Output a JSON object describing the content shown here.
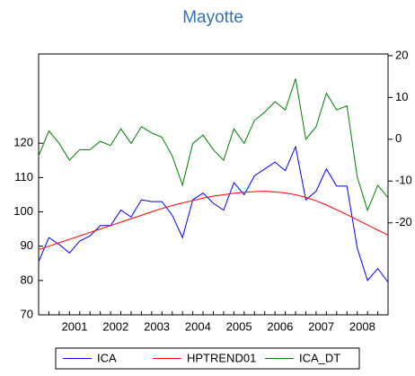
{
  "chart_data": {
    "type": "line",
    "title": "Mayotte",
    "categories": [
      null,
      null,
      "2001",
      null,
      null,
      null,
      "2002",
      null,
      null,
      null,
      "2003",
      null,
      null,
      null,
      "2004",
      null,
      null,
      null,
      "2005",
      null,
      null,
      null,
      "2006",
      null,
      null,
      null,
      "2007",
      null,
      null,
      null,
      "2008",
      null,
      null,
      null,
      null
    ],
    "series": [
      {
        "name": "ICA",
        "color": "#0000ff",
        "values": [
          85.5,
          92.5,
          90.5,
          88,
          91.5,
          93,
          96,
          96,
          100.5,
          98.5,
          103.5,
          103,
          103,
          99,
          92.5,
          103.5,
          105.5,
          102.5,
          100.5,
          108.5,
          105,
          110.5,
          112.5,
          114.5,
          112,
          119,
          103.5,
          106,
          112.5,
          107.5,
          107.5,
          89.5,
          80,
          83.5,
          79.5
        ]
      },
      {
        "name": "HPTREND01",
        "color": "#ff0000",
        "values": [
          89,
          90,
          91,
          92,
          93,
          94,
          95,
          96,
          97,
          98,
          99,
          100,
          101,
          101.8,
          102.6,
          103.3,
          104,
          104.6,
          105,
          105.4,
          105.7,
          105.9,
          106,
          105.8,
          105.5,
          105,
          104.2,
          103.2,
          102,
          100.6,
          99.2,
          97.7,
          96.2,
          94.7,
          93.2
        ]
      },
      {
        "name": "ICA_DT",
        "color": "#008000",
        "axis": "y2",
        "values": [
          -4,
          2,
          -1,
          -5,
          -2.5,
          -2.5,
          -0.5,
          -1.5,
          2.5,
          -1,
          3,
          1.5,
          0.5,
          -4,
          -11,
          -1,
          1,
          -2.5,
          -5,
          2.5,
          -1,
          4.5,
          6.5,
          9,
          7,
          14.5,
          0,
          3,
          11,
          7,
          8,
          -9,
          -17,
          -11,
          -14
        ]
      }
    ],
    "ylim": [
      70,
      146
    ],
    "yticks": [
      70,
      80,
      90,
      100,
      110,
      120
    ],
    "y2lim": [
      -42,
      20.4
    ],
    "y2ticks": [
      -20,
      -10,
      0,
      10,
      20
    ],
    "legend": "bottom"
  }
}
